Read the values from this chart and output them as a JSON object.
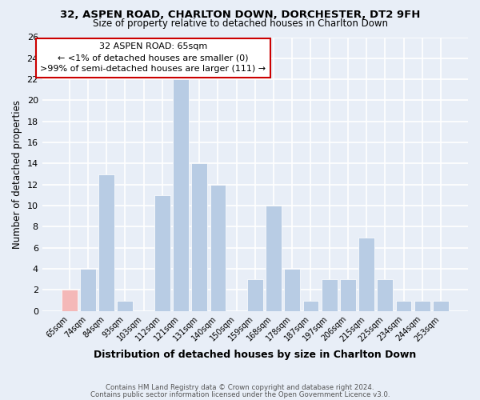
{
  "title_line1": "32, ASPEN ROAD, CHARLTON DOWN, DORCHESTER, DT2 9FH",
  "title_line2": "Size of property relative to detached houses in Charlton Down",
  "xlabel": "Distribution of detached houses by size in Charlton Down",
  "ylabel": "Number of detached properties",
  "bin_labels": [
    "65sqm",
    "74sqm",
    "84sqm",
    "93sqm",
    "103sqm",
    "112sqm",
    "121sqm",
    "131sqm",
    "140sqm",
    "150sqm",
    "159sqm",
    "168sqm",
    "178sqm",
    "187sqm",
    "197sqm",
    "206sqm",
    "215sqm",
    "225sqm",
    "234sqm",
    "244sqm",
    "253sqm"
  ],
  "bar_heights": [
    2,
    4,
    13,
    1,
    0,
    11,
    22,
    14,
    12,
    0,
    3,
    10,
    4,
    1,
    3,
    3,
    7,
    3,
    1,
    1,
    1
  ],
  "bar_color": "#b8cce4",
  "highlight_bar_color": "#f4b8b8",
  "highlight_index": 0,
  "ylim": [
    0,
    26
  ],
  "yticks": [
    0,
    2,
    4,
    6,
    8,
    10,
    12,
    14,
    16,
    18,
    20,
    22,
    24,
    26
  ],
  "annotation_line1": "32 ASPEN ROAD: 65sqm",
  "annotation_line2": "← <1% of detached houses are smaller (0)",
  "annotation_line3": ">99% of semi-detached houses are larger (111) →",
  "footer_line1": "Contains HM Land Registry data © Crown copyright and database right 2024.",
  "footer_line2": "Contains public sector information licensed under the Open Government Licence v3.0.",
  "background_color": "#e8eef7",
  "grid_color": "#ffffff",
  "annotation_bg": "#ffffff",
  "annotation_edge": "#cc0000"
}
